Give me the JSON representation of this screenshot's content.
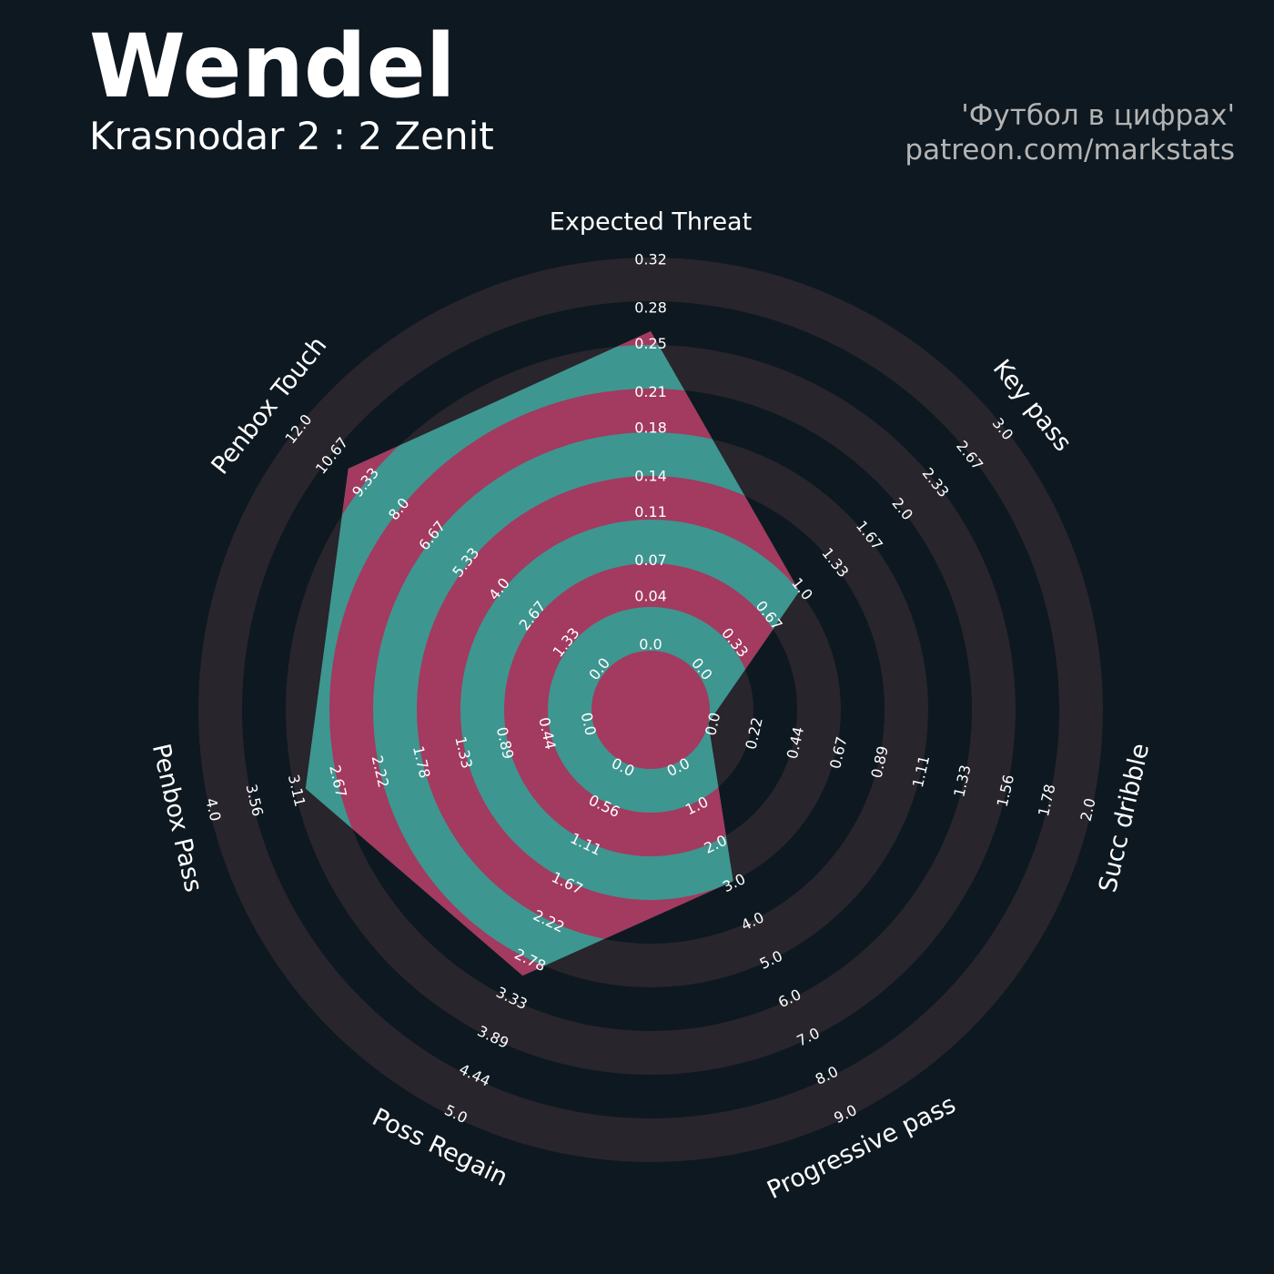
{
  "chart_data": {
    "type": "radar",
    "title": "Wendel",
    "subtitle": "Krasnodar 2 : 2 Zenit",
    "credits": [
      "'Футбол в цифрах'",
      "patreon.com/markstats"
    ],
    "background": "#0e1820",
    "ring_color": "#28252c",
    "colors": {
      "fill": "#3e9690",
      "alt_fill": "#a33a5f"
    },
    "axes": [
      {
        "name": "Expected Threat",
        "lim": [
          0,
          0.32
        ],
        "ticks": [
          {
            "value": 0,
            "label": "0.0"
          },
          0.04,
          0.07,
          0.11,
          0.14,
          0.18,
          0.21,
          0.25,
          0.28,
          0.32
        ]
      },
      {
        "name": "Key pass",
        "lim": [
          0,
          3
        ],
        "ticks": [
          {
            "value": 0,
            "label": "0.0"
          },
          0.33,
          0.67,
          {
            "value": 1,
            "label": "1.0"
          },
          1.33,
          1.67,
          {
            "value": 2,
            "label": "2.0"
          },
          2.33,
          2.67,
          {
            "value": 3,
            "label": "3.0"
          }
        ]
      },
      {
        "name": "Succ dribble",
        "lim": [
          0,
          2
        ],
        "ticks": [
          {
            "value": 0,
            "label": "0.0"
          },
          0.22,
          0.44,
          0.67,
          0.89,
          1.11,
          1.33,
          1.56,
          1.78,
          {
            "value": 2,
            "label": "2.0"
          }
        ]
      },
      {
        "name": "Progressive pass",
        "lim": [
          0,
          9
        ],
        "ticks": [
          {
            "value": 0,
            "label": "0.0"
          },
          {
            "value": 1,
            "label": "1.0"
          },
          {
            "value": 2,
            "label": "2.0"
          },
          {
            "value": 3,
            "label": "3.0"
          },
          {
            "value": 4,
            "label": "4.0"
          },
          {
            "value": 5,
            "label": "5.0"
          },
          {
            "value": 6,
            "label": "6.0"
          },
          {
            "value": 7,
            "label": "7.0"
          },
          {
            "value": 8,
            "label": "8.0"
          },
          {
            "value": 9,
            "label": "9.0"
          }
        ]
      },
      {
        "name": "Poss Regain",
        "lim": [
          0,
          5
        ],
        "ticks": [
          {
            "value": 0,
            "label": "0.0"
          },
          0.56,
          1.11,
          1.67,
          2.22,
          2.78,
          3.33,
          3.89,
          4.44,
          {
            "value": 5,
            "label": "5.0"
          }
        ]
      },
      {
        "name": "Penbox Pass",
        "lim": [
          0,
          4
        ],
        "ticks": [
          {
            "value": 0,
            "label": "0.0"
          },
          0.44,
          0.89,
          1.33,
          1.78,
          2.22,
          2.67,
          3.11,
          3.56,
          {
            "value": 4,
            "label": "4.0"
          }
        ]
      },
      {
        "name": "Penbox Touch",
        "lim": [
          0,
          12
        ],
        "ticks": [
          {
            "value": 0,
            "label": "0.0"
          },
          1.33,
          2.67,
          {
            "value": 4,
            "label": "4.0"
          },
          5.33,
          6.67,
          {
            "value": 8,
            "label": "8.0"
          },
          9.33,
          10.67,
          {
            "value": 12,
            "label": "12.0"
          }
        ]
      }
    ],
    "series": [
      {
        "values": [
          0.26,
          1,
          0,
          3,
          3,
          3,
          10
        ]
      }
    ]
  }
}
